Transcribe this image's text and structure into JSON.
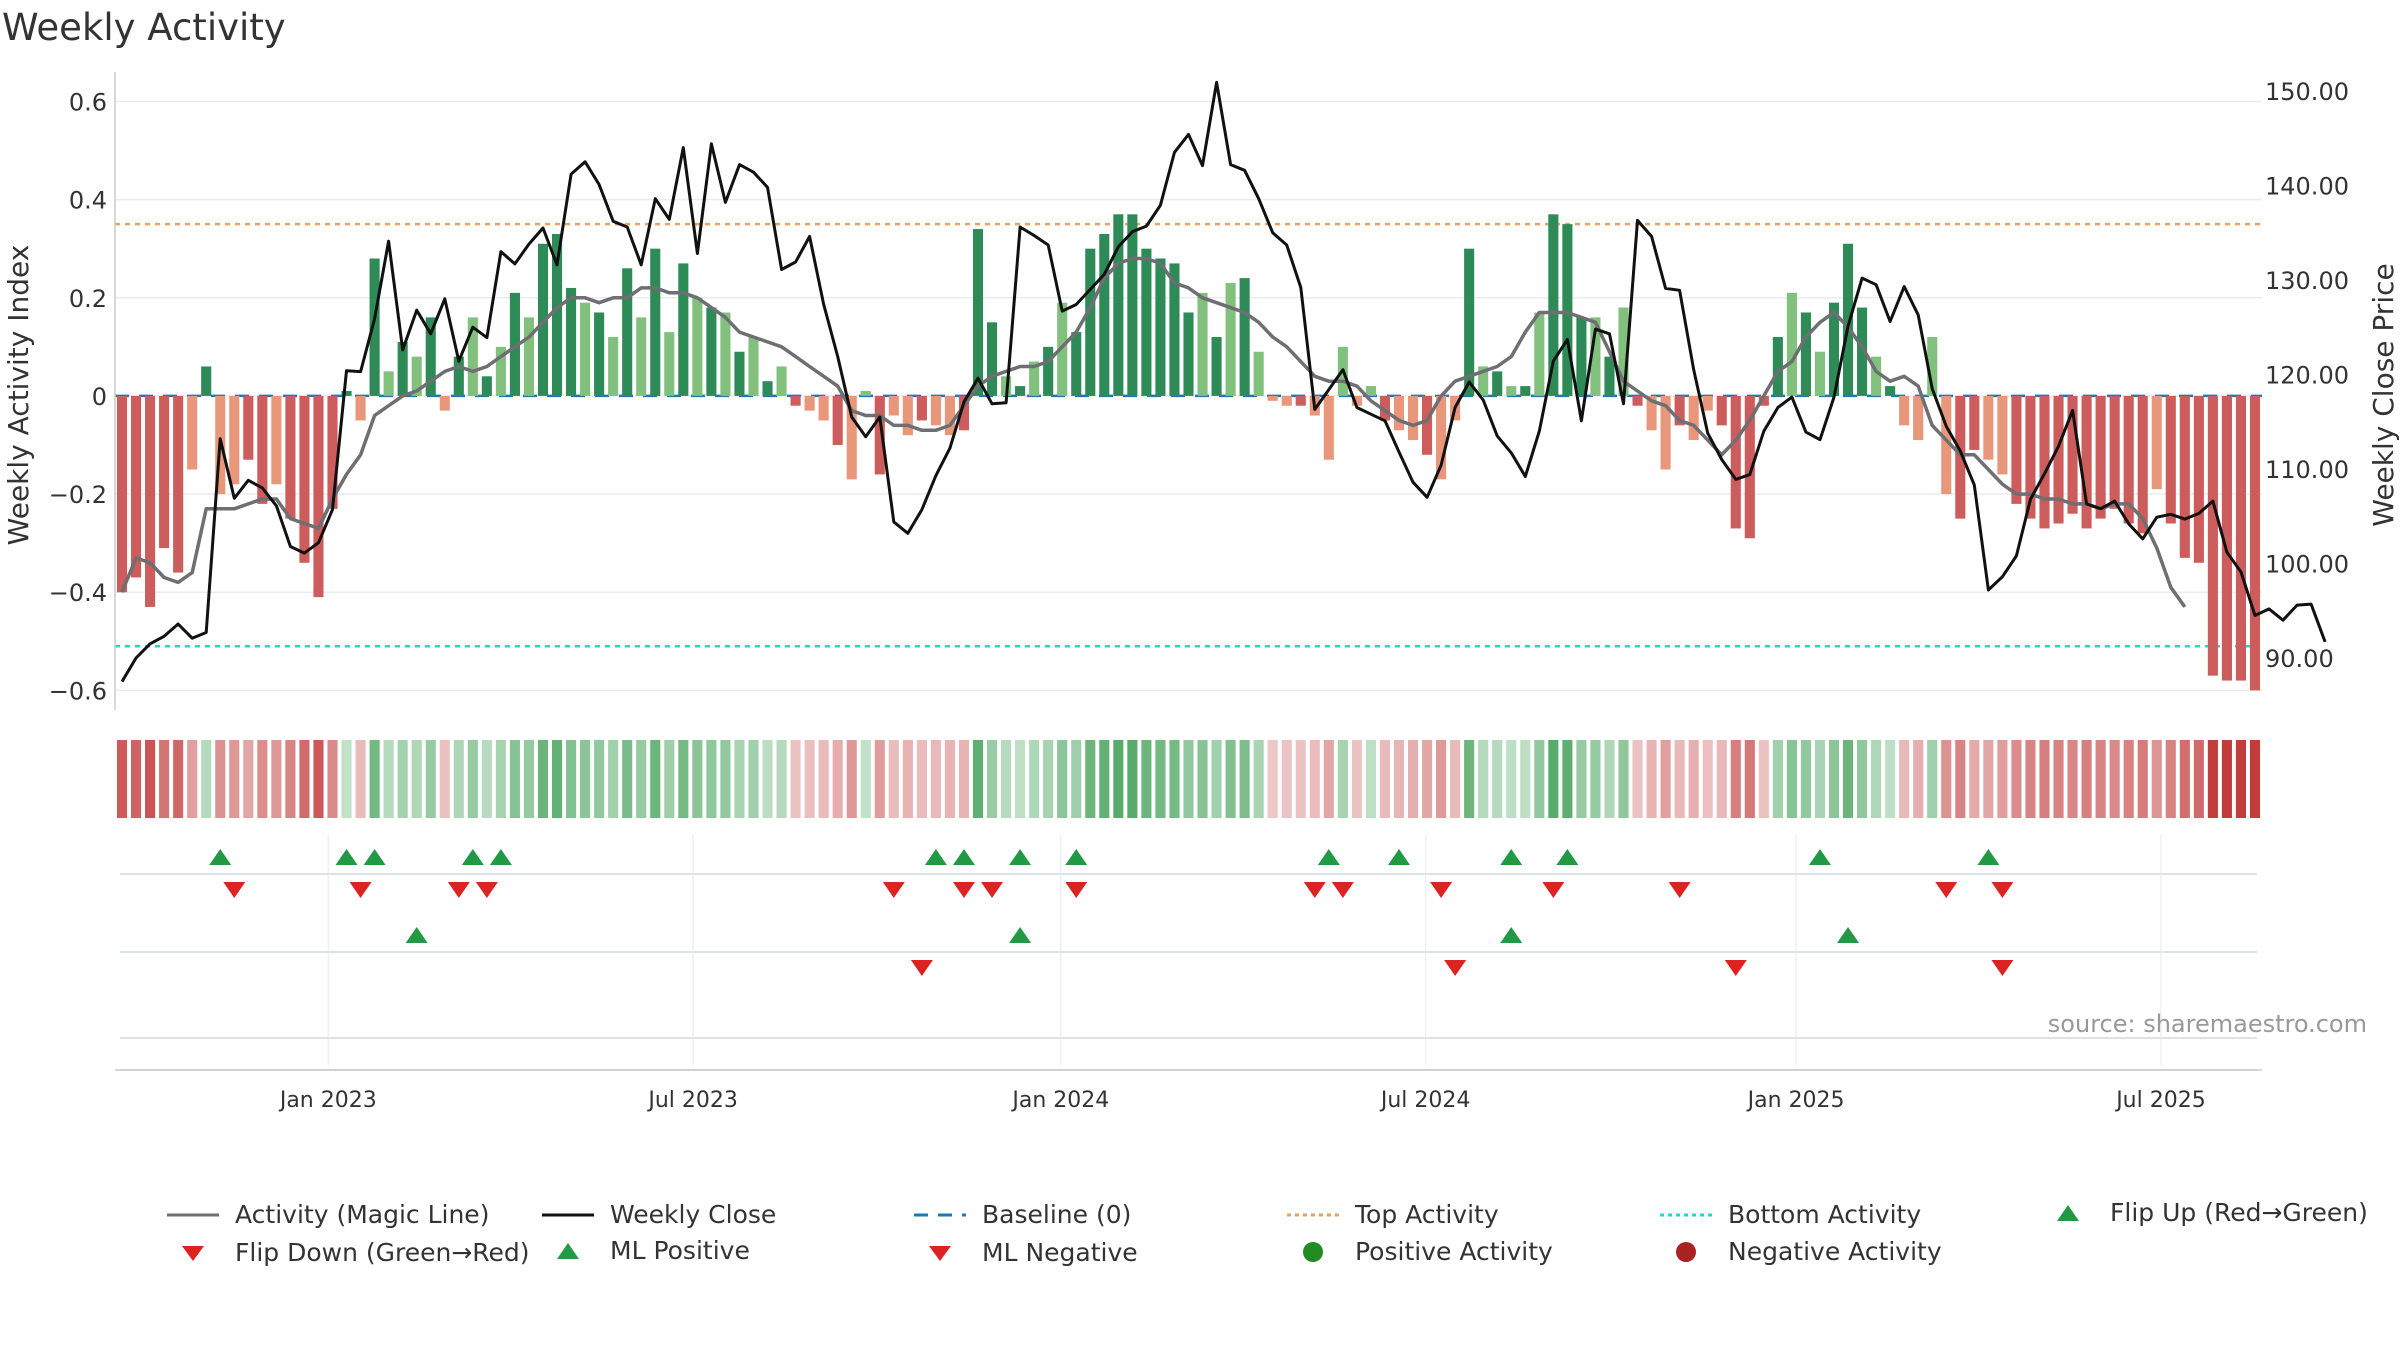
{
  "title": "Weekly Activity",
  "source": "source: sharemaestro.com",
  "colors": {
    "positive_strong": "#2e8b57",
    "positive_light": "#82c07e",
    "negative_strong": "#cd5c5c",
    "negative_light": "#e8977a",
    "magic_line": "#6e6e73",
    "close_line": "#111111",
    "baseline": "#1f77b4",
    "top": "#f0a060",
    "bottom": "#2fd0d0",
    "flip_up": "#229944",
    "flip_down": "#dd2222"
  },
  "chart_data": {
    "type": "bar+line",
    "title": "Weekly Activity",
    "ylabel": "Weekly Activity Index",
    "y2label": "Weekly Close Price",
    "ylim": [
      -0.64,
      0.66
    ],
    "y2lim": [
      84.5,
      152.0
    ],
    "yticks": [
      "0.6",
      "0.4",
      "0.2",
      "0",
      "−0.2",
      "−0.4",
      "−0.6"
    ],
    "ytick_values": [
      0.6,
      0.4,
      0.2,
      0,
      -0.2,
      -0.4,
      -0.6
    ],
    "y2ticks": [
      "150.00",
      "140.00",
      "130.00",
      "120.00",
      "110.00",
      "100.00",
      "90.00"
    ],
    "y2tick_values": [
      150,
      140,
      130,
      120,
      110,
      100,
      90
    ],
    "x_range_weeks": [
      0,
      157
    ],
    "xticks": [
      "Jan 2023",
      "Jul 2023",
      "Jan 2024",
      "Jul 2024",
      "Jan 2025",
      "Jul 2025"
    ],
    "xtick_weeks": [
      15.2,
      41.2,
      67.4,
      93.4,
      119.8,
      145.8
    ],
    "top_activity": 0.35,
    "bottom_activity": -0.51,
    "baseline": 0,
    "activity_bars": [
      -0.4,
      -0.37,
      -0.43,
      -0.31,
      -0.36,
      -0.15,
      0.06,
      -0.2,
      -0.18,
      -0.13,
      -0.22,
      -0.18,
      -0.25,
      -0.34,
      -0.41,
      -0.23,
      0.01,
      -0.05,
      0.28,
      0.05,
      0.11,
      0.08,
      0.16,
      -0.03,
      0.08,
      0.16,
      0.04,
      0.1,
      0.21,
      0.16,
      0.31,
      0.33,
      0.22,
      0.19,
      0.17,
      0.12,
      0.26,
      0.16,
      0.3,
      0.13,
      0.27,
      0.2,
      0.18,
      0.17,
      0.09,
      0.12,
      0.03,
      0.06,
      -0.02,
      -0.03,
      -0.05,
      -0.1,
      -0.17,
      0.01,
      -0.16,
      -0.04,
      -0.08,
      -0.05,
      -0.06,
      -0.08,
      -0.07,
      0.34,
      0.15,
      0.04,
      0.02,
      0.07,
      0.1,
      0.19,
      0.13,
      0.3,
      0.33,
      0.37,
      0.37,
      0.3,
      0.28,
      0.27,
      0.17,
      0.21,
      0.12,
      0.23,
      0.24,
      0.09,
      -0.01,
      -0.02,
      -0.02,
      -0.04,
      -0.13,
      0.1,
      -0.02,
      0.02,
      -0.05,
      -0.07,
      -0.09,
      -0.12,
      -0.17,
      -0.05,
      0.3,
      0.06,
      0.05,
      0.02,
      0.02,
      0.17,
      0.37,
      0.35,
      0.16,
      0.16,
      0.08,
      0.18,
      -0.02,
      -0.07,
      -0.15,
      -0.06,
      -0.09,
      -0.03,
      -0.06,
      -0.27,
      -0.29,
      -0.02,
      0.12,
      0.21,
      0.17,
      0.09,
      0.19,
      0.31,
      0.18,
      0.08,
      0.02,
      -0.06,
      -0.09,
      0.12,
      -0.2,
      -0.25,
      -0.11,
      -0.13,
      -0.16,
      -0.22,
      -0.25,
      -0.27,
      -0.26,
      -0.24,
      -0.27,
      -0.25,
      -0.23,
      -0.26,
      -0.28,
      -0.19,
      -0.26,
      -0.33,
      -0.34,
      -0.57,
      -0.58,
      -0.58,
      -0.6
    ],
    "magic_line": [
      -0.4,
      -0.33,
      -0.34,
      -0.37,
      -0.38,
      -0.36,
      -0.23,
      -0.23,
      -0.23,
      -0.22,
      -0.21,
      -0.21,
      -0.25,
      -0.26,
      -0.27,
      -0.21,
      -0.16,
      -0.12,
      -0.04,
      -0.02,
      0,
      0.01,
      0.03,
      0.05,
      0.06,
      0.05,
      0.06,
      0.08,
      0.1,
      0.12,
      0.15,
      0.18,
      0.2,
      0.2,
      0.19,
      0.2,
      0.2,
      0.22,
      0.22,
      0.21,
      0.21,
      0.2,
      0.18,
      0.16,
      0.13,
      0.12,
      0.11,
      0.1,
      0.08,
      0.06,
      0.04,
      0.02,
      -0.03,
      -0.04,
      -0.04,
      -0.06,
      -0.06,
      -0.07,
      -0.07,
      -0.06,
      -0.02,
      0.02,
      0.04,
      0.05,
      0.06,
      0.06,
      0.07,
      0.1,
      0.13,
      0.18,
      0.24,
      0.27,
      0.28,
      0.28,
      0.27,
      0.23,
      0.22,
      0.2,
      0.19,
      0.18,
      0.17,
      0.15,
      0.12,
      0.1,
      0.07,
      0.04,
      0.03,
      0.03,
      0.02,
      -0.01,
      -0.03,
      -0.05,
      -0.06,
      -0.05,
      0,
      0.03,
      0.04,
      0.05,
      0.06,
      0.08,
      0.13,
      0.17,
      0.17,
      0.17,
      0.16,
      0.15,
      0.09,
      0.03,
      0.01,
      -0.01,
      -0.02,
      -0.05,
      -0.06,
      -0.09,
      -0.12,
      -0.09,
      -0.05,
      0,
      0.05,
      0.07,
      0.12,
      0.15,
      0.17,
      0.14,
      0.1,
      0.05,
      0.03,
      0.04,
      0.02,
      -0.06,
      -0.09,
      -0.12,
      -0.12,
      -0.15,
      -0.18,
      -0.2,
      -0.2,
      -0.21,
      -0.21,
      -0.22,
      -0.22,
      -0.23,
      -0.22,
      -0.22,
      -0.25,
      -0.31,
      -0.39,
      -0.43
    ],
    "weekly_close": [
      87.5,
      90,
      91.5,
      92.3,
      93.6,
      92.1,
      92.7,
      113.2,
      106.9,
      108.8,
      108,
      106.1,
      101.8,
      101.1,
      102.2,
      105.7,
      120.4,
      120.3,
      125.9,
      134.1,
      122.6,
      126.8,
      124.3,
      128,
      121.4,
      125,
      123.9,
      133,
      131.7,
      133.8,
      135.5,
      131.6,
      141.2,
      142.5,
      140.1,
      136.2,
      135.6,
      131.6,
      138.6,
      136.4,
      144,
      132.8,
      144.4,
      138.2,
      142.2,
      141.4,
      139.8,
      131.1,
      131.9,
      134.6,
      127.4,
      121.9,
      115.5,
      113.4,
      115.5,
      104.4,
      103.2,
      105.7,
      109.3,
      112.2,
      117.1,
      119.6,
      116.9,
      117,
      135.6,
      134.7,
      133.7,
      126.7,
      127.4,
      129,
      130.6,
      133.5,
      135.1,
      135.7,
      137.9,
      143.5,
      145.4,
      142.1,
      150.9,
      142.2,
      141.6,
      138.6,
      135,
      133.7,
      129.2,
      116.3,
      118.4,
      120.5,
      116.5,
      115.8,
      115.1,
      111.8,
      108.6,
      107,
      110.4,
      116.5,
      119.2,
      117.3,
      113.5,
      111.7,
      109.2,
      114,
      121.4,
      123.7,
      115.1,
      124.8,
      124.3,
      116.9,
      136.3,
      134.6,
      129.1,
      128.9,
      120.5,
      113.8,
      111,
      108.9,
      109.4,
      114,
      116.5,
      117.6,
      113.9,
      113.1,
      117.6,
      125.1,
      130.2,
      129.5,
      125.6,
      129.3,
      126.3,
      118.5,
      114.5,
      111.9,
      108.3,
      97.2,
      98.6,
      100.8,
      106.8,
      109.5,
      112.4,
      116.2,
      106.3,
      105.8,
      106.6,
      104.2,
      102.6,
      104.9,
      105.2,
      104.7,
      105.3,
      106.6,
      101.2,
      99.1,
      94.5,
      95.2,
      94,
      95.6,
      95.7,
      91.7
    ],
    "color_strip_sign": "same as activity_bars",
    "flip_up_weeks": [
      7,
      16,
      18,
      25,
      27,
      58,
      60,
      64,
      68,
      86,
      91,
      99,
      103,
      121,
      133
    ],
    "flip_down_weeks": [
      8,
      17,
      24,
      26,
      55,
      60,
      62,
      68,
      85,
      87,
      94,
      102,
      111,
      130,
      134
    ],
    "ml_positive_weeks": [
      21,
      64,
      99,
      123
    ],
    "ml_negative_weeks": [
      57,
      95,
      115,
      134
    ],
    "positive_activity_weeks": [],
    "negative_activity_weeks": []
  },
  "legend": [
    {
      "label": "Activity (Magic Line)",
      "icon": "grey-line-icon"
    },
    {
      "label": "Weekly Close",
      "icon": "black-line-icon"
    },
    {
      "label": "Baseline (0)",
      "icon": "blue-dashed-line-icon"
    },
    {
      "label": "Top Activity",
      "icon": "orange-dotted-line-icon"
    },
    {
      "label": "Bottom Activity",
      "icon": "cyan-dotted-line-icon"
    },
    {
      "label": "Flip Up (Red→Green)",
      "icon": "green-triangle-up-icon"
    },
    {
      "label": "Flip Down (Green→Red)",
      "icon": "red-triangle-down-icon"
    },
    {
      "label": "ML Positive",
      "icon": "green-triangle-up-icon"
    },
    {
      "label": "ML Negative",
      "icon": "red-triangle-down-icon"
    },
    {
      "label": "Positive Activity",
      "icon": "green-dot-icon"
    },
    {
      "label": "Negative Activity",
      "icon": "dark-red-dot-icon"
    }
  ]
}
